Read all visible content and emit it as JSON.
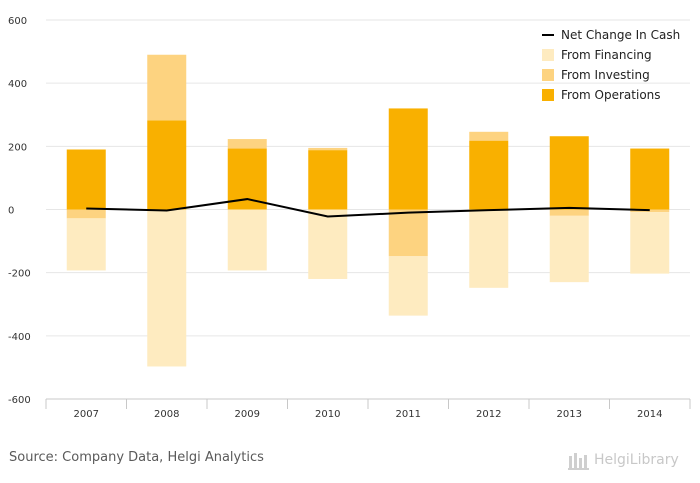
{
  "chart_data": {
    "type": "bar",
    "categories": [
      "2007",
      "2008",
      "2009",
      "2010",
      "2011",
      "2012",
      "2013",
      "2014"
    ],
    "series": [
      {
        "name": "From Operations",
        "kind": "bar",
        "color": "#f9b000",
        "values": [
          190,
          282,
          193,
          188,
          320,
          218,
          232,
          193
        ]
      },
      {
        "name": "From Investing",
        "kind": "bar",
        "color": "#fdd380",
        "values": [
          -28,
          208,
          30,
          7,
          -148,
          28,
          -20,
          -8
        ]
      },
      {
        "name": "From Financing",
        "kind": "bar",
        "color": "#feebc0",
        "values": [
          -165,
          -497,
          -193,
          -220,
          -188,
          -248,
          -210,
          -195
        ]
      },
      {
        "name": "Net Change In Cash",
        "kind": "line",
        "color": "#000000",
        "values": [
          3,
          -3,
          33,
          -22,
          -10,
          -2,
          5,
          -2
        ]
      }
    ],
    "yticks": [
      -600,
      -400,
      -200,
      0,
      200,
      400,
      600
    ],
    "ylim": [
      -600,
      600
    ],
    "grid": true,
    "legend_position": "top-right",
    "legend_order": [
      "Net Change In Cash",
      "From Financing",
      "From Investing",
      "From Operations"
    ]
  },
  "footer": {
    "source": "Source: Company Data, Helgi Analytics",
    "brand": "HelgiLibrary"
  }
}
